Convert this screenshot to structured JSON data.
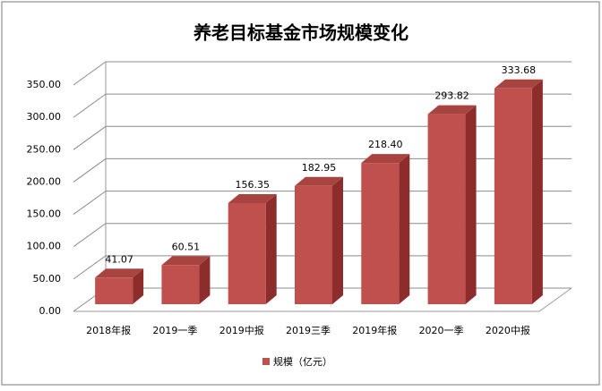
{
  "chart_data": {
    "type": "bar3d",
    "title": "养老目标基金市场规模变化",
    "categories": [
      "2018年报",
      "2019一季",
      "2019中报",
      "2019三季",
      "2019年报",
      "2020一季",
      "2020中报"
    ],
    "series": [
      {
        "name": "规模（亿元）",
        "color": "#c0504d",
        "values": [
          41.07,
          60.51,
          156.35,
          182.95,
          218.4,
          293.82,
          333.68
        ],
        "value_labels": [
          "41.07",
          "60.51",
          "156.35",
          "182.95",
          "218.40",
          "293.82",
          "333.68"
        ]
      }
    ],
    "ylim": [
      0,
      350
    ],
    "yticks": [
      {
        "value": 0,
        "label": "0.00"
      },
      {
        "value": 50,
        "label": "50.00"
      },
      {
        "value": 100,
        "label": "100.00"
      },
      {
        "value": 150,
        "label": "150.00"
      },
      {
        "value": 200,
        "label": "200.00"
      },
      {
        "value": 250,
        "label": "250.00"
      },
      {
        "value": 300,
        "label": "300.00"
      },
      {
        "value": 350,
        "label": "350.00"
      }
    ],
    "grid": true,
    "legend": "bottom"
  }
}
